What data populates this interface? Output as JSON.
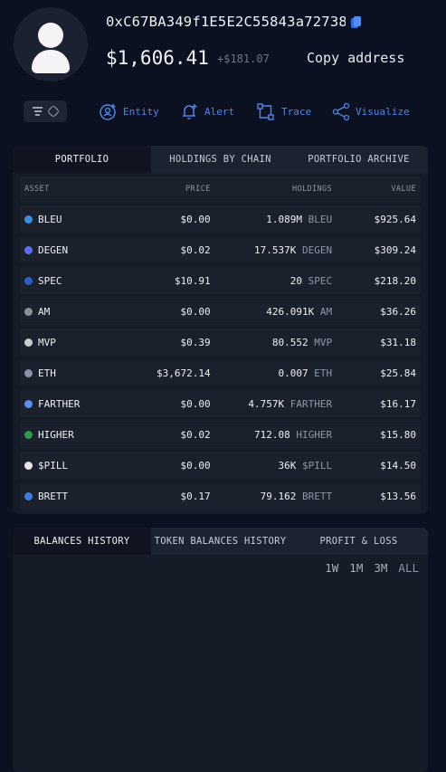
{
  "header": {
    "address": "0xC67BA349f1E5E2C55843a72738",
    "balance": "$1,606.41",
    "change": "+$181.07",
    "copy_address_label": "Copy address"
  },
  "toolbar": {
    "entity": "Entity",
    "alert": "Alert",
    "trace": "Trace",
    "visualize": "Visualize",
    "accent": "#4e86ea"
  },
  "portfolio": {
    "tabs": [
      "PORTFOLIO",
      "HOLDINGS BY CHAIN",
      "PORTFOLIO ARCHIVE"
    ],
    "columns": [
      "ASSET",
      "PRICE",
      "HOLDINGS",
      "VALUE"
    ],
    "rows": [
      {
        "asset": "BLEU",
        "price": "$0.00",
        "amount": "1.089M",
        "unit": "BLEU",
        "value": "$925.64",
        "icon_color": "#3a8ee0",
        "icon": "umbrella-icon"
      },
      {
        "asset": "DEGEN",
        "price": "$0.02",
        "amount": "17.537K",
        "unit": "DEGEN",
        "value": "$309.24",
        "icon_color": "#5b6ef0",
        "icon": "degen-icon"
      },
      {
        "asset": "SPEC",
        "price": "$10.91",
        "amount": "20",
        "unit": "SPEC",
        "value": "$218.20",
        "icon_color": "#2a5fd0",
        "icon": "spec-icon"
      },
      {
        "asset": "AM",
        "price": "$0.00",
        "amount": "426.091K",
        "unit": "AM",
        "value": "$36.26",
        "icon_color": "#8a8f99",
        "icon": "am-icon"
      },
      {
        "asset": "MVP",
        "price": "$0.39",
        "amount": "80.552",
        "unit": "MVP",
        "value": "$31.18",
        "icon_color": "#c9ccd2",
        "icon": "mvp-icon"
      },
      {
        "asset": "ETH",
        "price": "$3,672.14",
        "amount": "0.007",
        "unit": "ETH",
        "value": "$25.84",
        "icon_color": "#8d93a6",
        "icon": "eth-icon"
      },
      {
        "asset": "FARTHER",
        "price": "$0.00",
        "amount": "4.757K",
        "unit": "FARTHER",
        "value": "$16.17",
        "icon_color": "#5c8ee8",
        "icon": "farther-icon"
      },
      {
        "asset": "HIGHER",
        "price": "$0.02",
        "amount": "712.08",
        "unit": "HIGHER",
        "value": "$15.80",
        "icon_color": "#2e9a4a",
        "icon": "higher-icon"
      },
      {
        "asset": "$PILL",
        "price": "$0.00",
        "amount": "36K",
        "unit": "$PILL",
        "value": "$14.50",
        "icon_color": "#e8e8ea",
        "icon": "pill-icon"
      },
      {
        "asset": "BRETT",
        "price": "$0.17",
        "amount": "79.162",
        "unit": "BRETT",
        "value": "$13.56",
        "icon_color": "#3f7be0",
        "icon": "brett-icon"
      }
    ]
  },
  "history": {
    "tabs": [
      "BALANCES HISTORY",
      "TOKEN BALANCES HISTORY",
      "PROFIT & LOSS"
    ],
    "ranges": [
      "1W",
      "1M",
      "3M",
      "ALL"
    ]
  }
}
